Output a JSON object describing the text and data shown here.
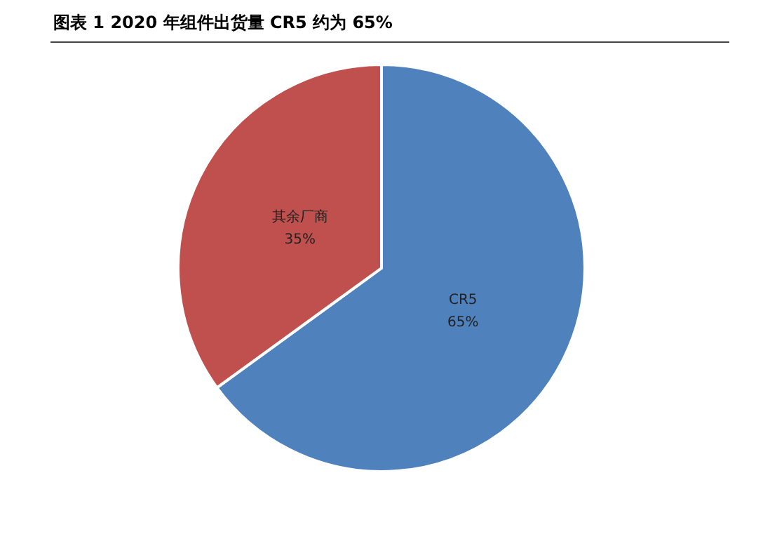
{
  "chart_data": {
    "type": "pie",
    "title": "图表 1 2020 年组件出货量 CR5 约为 65%",
    "categories": [
      "CR5",
      "其余厂商"
    ],
    "values": [
      65,
      35
    ],
    "colors": [
      "#4f81bd",
      "#c0504d"
    ],
    "value_labels": [
      "65%",
      "35%"
    ]
  }
}
